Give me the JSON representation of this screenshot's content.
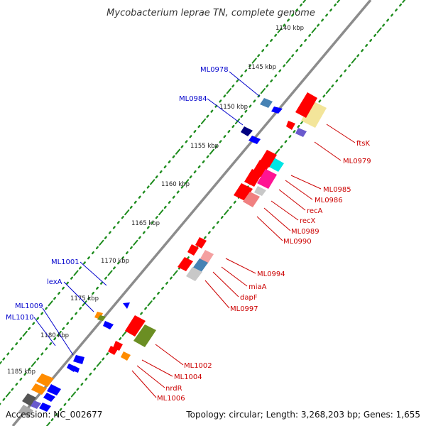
{
  "title": "Mycobacterium leprae TN, complete genome",
  "accession": "Accession: NC_002677",
  "topology": "Topology: circular; Length: 3,268,203 bp; Genes: 1,655",
  "colors": {
    "backbone": "#8c8c8c",
    "ruler_dots": "#1e8c1e",
    "forward_labels": "#0000cc",
    "reverse_labels": "#cc0000",
    "ftsK": "#f3e59a",
    "ML0978": "#4682b4",
    "ML0984": "#000080",
    "ML0985": "#00e5e5",
    "ML0986": "#ff1493",
    "recX": "#f08080",
    "ML0990": "#c8c8c8",
    "ML0994": "#f4a0a0",
    "miaA": "#4682b4",
    "ML0997": "#c8c8c8",
    "ML1002": "#6b8e23",
    "ML1006": "#ff8c00",
    "ML1009": "#ff8c00",
    "gene_default_red": "#ff0000",
    "gene_default_blue": "#0000ff"
  },
  "ticks": [
    "1140 kbp",
    "1145 kbp",
    "1150 kbp",
    "1155 kbp",
    "1160 kbp",
    "1165 kbp",
    "1170 kbp",
    "1175 kbp",
    "1180 kbp",
    "1185 kbp"
  ],
  "forward_gene_labels": [
    "ML0978",
    "ML0984",
    "ML1001",
    "lexA",
    "ML1009",
    "ML1010"
  ],
  "reverse_gene_labels": [
    "ftsK",
    "ML0979",
    "ML0985",
    "ML0986",
    "recA",
    "recX",
    "ML0989",
    "ML0990",
    "ML0994",
    "miaA",
    "dapF",
    "ML0997",
    "ML1002",
    "ML1004",
    "nrdR",
    "ML1006"
  ]
}
